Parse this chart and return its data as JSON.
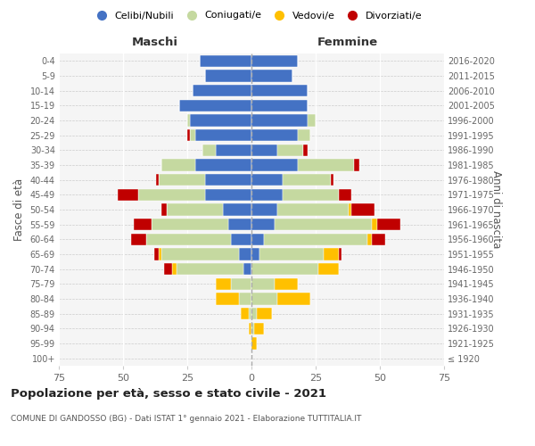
{
  "age_groups": [
    "100+",
    "95-99",
    "90-94",
    "85-89",
    "80-84",
    "75-79",
    "70-74",
    "65-69",
    "60-64",
    "55-59",
    "50-54",
    "45-49",
    "40-44",
    "35-39",
    "30-34",
    "25-29",
    "20-24",
    "15-19",
    "10-14",
    "5-9",
    "0-4"
  ],
  "birth_years": [
    "≤ 1920",
    "1921-1925",
    "1926-1930",
    "1931-1935",
    "1936-1940",
    "1941-1945",
    "1946-1950",
    "1951-1955",
    "1956-1960",
    "1961-1965",
    "1966-1970",
    "1971-1975",
    "1976-1980",
    "1981-1985",
    "1986-1990",
    "1991-1995",
    "1996-2000",
    "2001-2005",
    "2006-2010",
    "2011-2015",
    "2016-2020"
  ],
  "males": {
    "celibi": [
      0,
      0,
      0,
      0,
      0,
      0,
      3,
      5,
      8,
      9,
      11,
      18,
      18,
      22,
      14,
      22,
      24,
      28,
      23,
      18,
      20
    ],
    "coniugati": [
      0,
      0,
      0,
      1,
      5,
      8,
      26,
      30,
      33,
      30,
      22,
      26,
      18,
      13,
      5,
      2,
      1,
      0,
      0,
      0,
      0
    ],
    "vedovi": [
      0,
      0,
      1,
      3,
      9,
      6,
      2,
      1,
      0,
      0,
      0,
      0,
      0,
      0,
      0,
      0,
      0,
      0,
      0,
      0,
      0
    ],
    "divorziati": [
      0,
      0,
      0,
      0,
      0,
      0,
      3,
      2,
      6,
      7,
      2,
      8,
      1,
      0,
      0,
      1,
      0,
      0,
      0,
      0,
      0
    ]
  },
  "females": {
    "nubili": [
      0,
      0,
      0,
      0,
      0,
      0,
      0,
      3,
      5,
      9,
      10,
      12,
      12,
      18,
      10,
      18,
      22,
      22,
      22,
      16,
      18
    ],
    "coniugate": [
      0,
      0,
      1,
      2,
      10,
      9,
      26,
      25,
      40,
      38,
      28,
      22,
      19,
      22,
      10,
      5,
      3,
      0,
      0,
      0,
      0
    ],
    "vedove": [
      0,
      2,
      4,
      6,
      13,
      9,
      8,
      6,
      2,
      2,
      1,
      0,
      0,
      0,
      0,
      0,
      0,
      0,
      0,
      0,
      0
    ],
    "divorziate": [
      0,
      0,
      0,
      0,
      0,
      0,
      0,
      1,
      5,
      9,
      9,
      5,
      1,
      2,
      2,
      0,
      0,
      0,
      0,
      0,
      0
    ]
  },
  "color_celibi": "#4472c4",
  "color_coniugati": "#c5d9a0",
  "color_vedovi": "#ffc000",
  "color_divorziati": "#c00000",
  "xlim": 75,
  "title": "Popolazione per età, sesso e stato civile - 2021",
  "subtitle": "COMUNE DI GANDOSSO (BG) - Dati ISTAT 1° gennaio 2021 - Elaborazione TUTTITALIA.IT",
  "xlabel_left": "Maschi",
  "xlabel_right": "Femmine",
  "ylabel_left": "Fasce di età",
  "ylabel_right": "Anni di nascita"
}
